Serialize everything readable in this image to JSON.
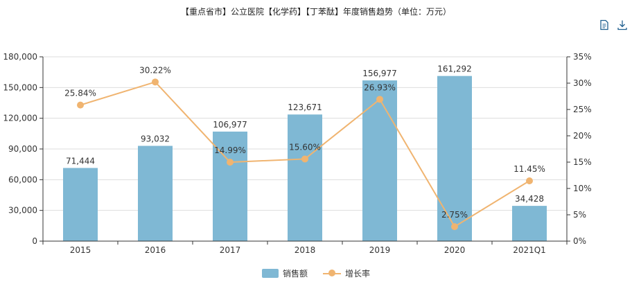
{
  "chart_data": {
    "type": "bar",
    "title": "【重点省市】公立医院【化学药】【丁苯酞】年度销售趋势（单位：万元）",
    "categories": [
      "2015",
      "2016",
      "2017",
      "2018",
      "2019",
      "2020",
      "2021Q1"
    ],
    "series": [
      {
        "name": "销售额",
        "type": "bar",
        "axis": "left",
        "values": [
          71444,
          93032,
          106977,
          123671,
          156977,
          161292,
          34428
        ],
        "labels": [
          "71,444",
          "93,032",
          "106,977",
          "123,671",
          "156,977",
          "161,292",
          "34,428"
        ]
      },
      {
        "name": "增长率",
        "type": "line",
        "axis": "right",
        "values": [
          25.84,
          30.22,
          14.99,
          15.6,
          26.93,
          2.75,
          11.45
        ],
        "labels": [
          "25.84%",
          "30.22%",
          "14.99%",
          "15.60%",
          "26.93%",
          "2.75%",
          "11.45%"
        ]
      }
    ],
    "y_left": {
      "ylim": [
        0,
        180000
      ],
      "ticks": [
        0,
        30000,
        60000,
        90000,
        120000,
        150000,
        180000
      ],
      "tick_labels": [
        "0",
        "30,000",
        "60,000",
        "90,000",
        "120,000",
        "150,000",
        "180,000"
      ]
    },
    "y_right": {
      "ylim": [
        0,
        35
      ],
      "ticks": [
        0,
        5,
        10,
        15,
        20,
        25,
        30,
        35
      ],
      "tick_labels": [
        "0%",
        "5%",
        "10%",
        "15%",
        "20%",
        "25%",
        "30%",
        "35%"
      ]
    },
    "grid": true,
    "legend": "bottom-center"
  },
  "colors": {
    "bar": "#7fb8d4",
    "line": "#f0b470",
    "axis": "#333333",
    "grid": "#dddddd",
    "toolbar_icon": "#1f5f8f"
  },
  "toolbar": {
    "data_view_icon": "document-icon",
    "download_icon": "download-icon"
  }
}
